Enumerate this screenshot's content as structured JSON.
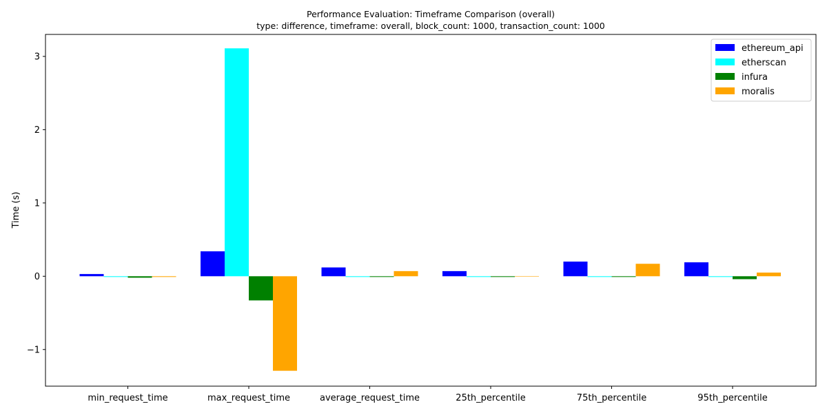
{
  "chart_data": {
    "type": "bar",
    "title": "Performance Evaluation: Timeframe Comparison (overall)",
    "subtitle": "type: difference, timeframe: overall, block_count: 1000, transaction_count: 1000",
    "xlabel": "",
    "ylabel": "Time (s)",
    "ylim": [
      -1.5,
      3.3
    ],
    "yticks": [
      -1,
      0,
      1,
      2,
      3
    ],
    "ytick_labels": [
      "−1",
      "0",
      "1",
      "2",
      "3"
    ],
    "grid": false,
    "legend_position": "top-right",
    "categories": [
      "min_request_time",
      "max_request_time",
      "average_request_time",
      "25th_percentile",
      "75th_percentile",
      "95th_percentile"
    ],
    "series": [
      {
        "name": "ethereum_api",
        "color": "#0000ff",
        "values": [
          0.03,
          0.34,
          0.12,
          0.07,
          0.2,
          0.19
        ]
      },
      {
        "name": "etherscan",
        "color": "#00ffff",
        "values": [
          -0.01,
          3.11,
          -0.01,
          -0.01,
          -0.01,
          -0.01
        ]
      },
      {
        "name": "infura",
        "color": "#008000",
        "values": [
          -0.02,
          -0.33,
          -0.01,
          -0.01,
          -0.01,
          -0.04
        ]
      },
      {
        "name": "moralis",
        "color": "#ffa500",
        "values": [
          -0.01,
          -1.29,
          0.07,
          0.0,
          0.17,
          0.05
        ]
      }
    ]
  }
}
